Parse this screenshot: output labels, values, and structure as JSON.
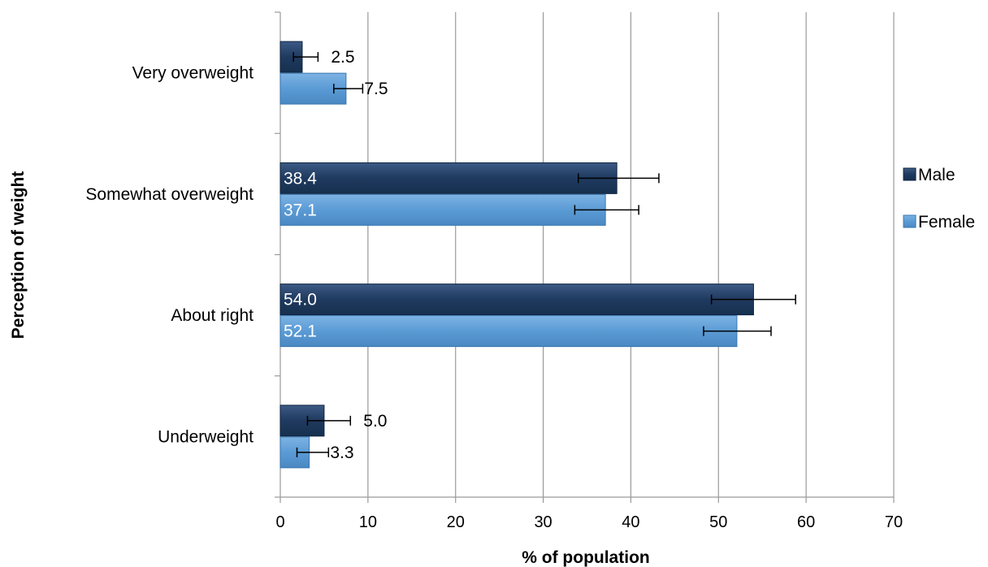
{
  "chart_data": {
    "type": "bar",
    "orientation": "horizontal",
    "title": "",
    "xlabel": "% of population",
    "ylabel": "Perception of weight",
    "xlim": [
      0,
      70
    ],
    "xticks": [
      0,
      10,
      20,
      30,
      40,
      50,
      60,
      70
    ],
    "grid": "vertical",
    "legend_position": "right",
    "categories": [
      "Very overweight",
      "Somewhat overweight",
      "About right",
      "Underweight"
    ],
    "series": [
      {
        "name": "Male",
        "color": "#1f3a5f",
        "values": [
          2.5,
          38.4,
          54.0,
          5.0
        ],
        "value_labels": [
          "2.5",
          "38.4",
          "54.0",
          "5.0"
        ],
        "error_low": [
          1.5,
          34.0,
          49.2,
          3.1
        ],
        "error_high": [
          4.3,
          43.2,
          58.8,
          8.0
        ]
      },
      {
        "name": "Female",
        "color": "#5b9bd5",
        "values": [
          7.5,
          37.1,
          52.1,
          3.3
        ],
        "value_labels": [
          "7.5",
          "37.1",
          "52.1",
          "3.3"
        ],
        "error_low": [
          6.1,
          33.6,
          48.3,
          1.9
        ],
        "error_high": [
          9.4,
          40.9,
          56.0,
          5.5
        ]
      }
    ]
  }
}
